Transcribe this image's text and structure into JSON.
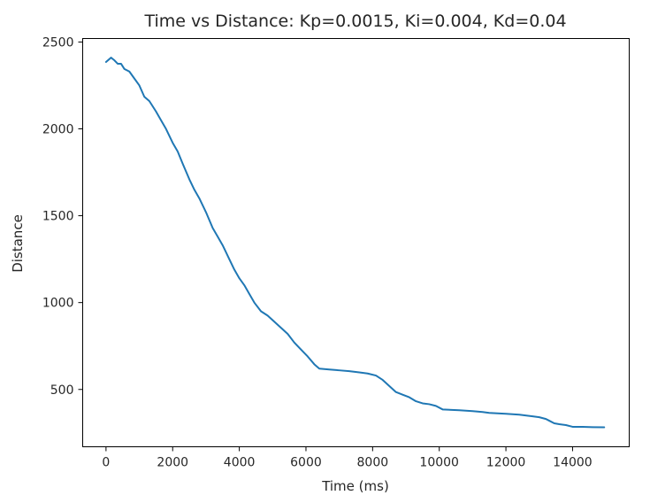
{
  "chart_data": {
    "type": "line",
    "title": "Time vs Distance: Kp=0.0015, Ki=0.004, Kd=0.04",
    "xlabel": "Time (ms)",
    "ylabel": "Distance",
    "xlim": [
      -700,
      15700
    ],
    "ylim": [
      170,
      2520
    ],
    "xticks": [
      0,
      2000,
      4000,
      6000,
      8000,
      10000,
      12000,
      14000
    ],
    "yticks": [
      500,
      1000,
      1500,
      2000,
      2500
    ],
    "grid": false,
    "color": "#1f77b4",
    "series": [
      {
        "x": [
          0,
          150,
          250,
          350,
          450,
          550,
          700,
          850,
          1000,
          1150,
          1300,
          1500,
          1650,
          1800,
          2000,
          2150,
          2300,
          2500,
          2650,
          2800,
          3000,
          3200,
          3350,
          3500,
          3700,
          3850,
          4000,
          4150,
          4300,
          4450,
          4650,
          4850,
          5050,
          5250,
          5450,
          5650,
          5850,
          6050,
          6250,
          6400,
          6700,
          7000,
          7300,
          7600,
          7850,
          8100,
          8300,
          8500,
          8700,
          8900,
          9100,
          9300,
          9500,
          9700,
          9900,
          10100,
          10600,
          11000,
          11300,
          11500,
          12000,
          12400,
          12800,
          13000,
          13200,
          13300,
          13450,
          13600,
          13800,
          14000,
          14300,
          14600,
          14950
        ],
        "y": [
          2385,
          2410,
          2395,
          2375,
          2375,
          2345,
          2330,
          2290,
          2250,
          2185,
          2160,
          2100,
          2050,
          2000,
          1920,
          1870,
          1800,
          1710,
          1650,
          1600,
          1520,
          1430,
          1380,
          1330,
          1250,
          1190,
          1140,
          1100,
          1050,
          1000,
          950,
          925,
          890,
          855,
          820,
          770,
          730,
          690,
          645,
          620,
          615,
          610,
          605,
          598,
          592,
          580,
          555,
          520,
          485,
          470,
          455,
          432,
          420,
          415,
          405,
          385,
          380,
          375,
          370,
          365,
          360,
          355,
          345,
          340,
          330,
          320,
          305,
          300,
          295,
          285,
          285,
          283,
          282
        ]
      }
    ]
  }
}
